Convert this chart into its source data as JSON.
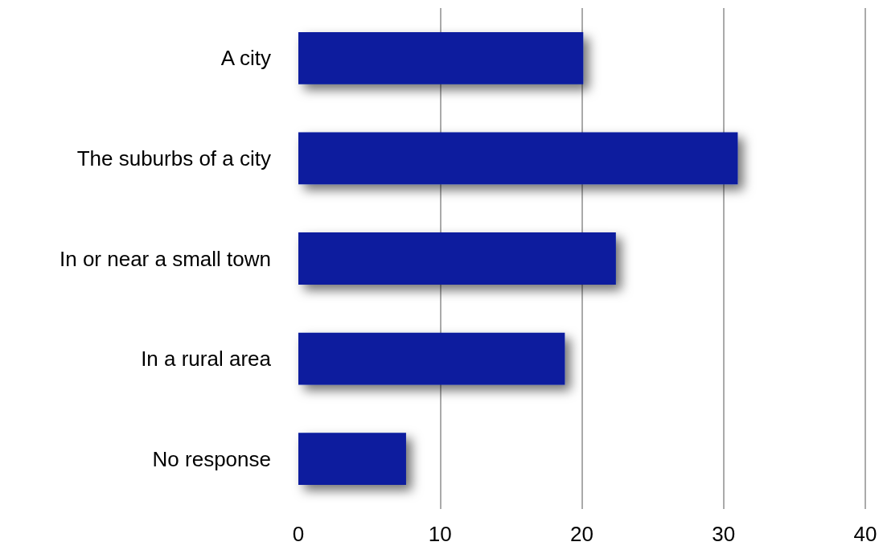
{
  "chart_data": {
    "type": "bar",
    "orientation": "horizontal",
    "categories": [
      "A city",
      "The suburbs of a city",
      "In or near a small town",
      "In a rural area",
      "No response"
    ],
    "values": [
      20.1,
      31.0,
      22.4,
      18.8,
      7.6
    ],
    "color": "#081c9e",
    "xlim": [
      0,
      40
    ],
    "xticks": [
      0,
      10,
      20,
      30,
      40
    ],
    "grid": "x"
  }
}
